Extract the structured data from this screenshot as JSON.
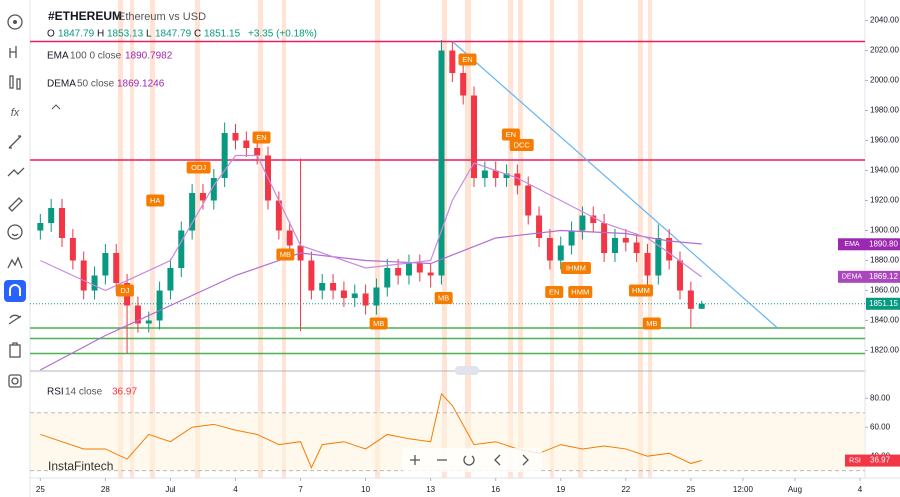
{
  "header": {
    "symbol": "#ETHEREUM",
    "description": "Ethereum vs USD",
    "ohlc": [
      {
        "key": "O",
        "value": "1847.79"
      },
      {
        "key": "H",
        "value": "1853.13"
      },
      {
        "key": "L",
        "value": "1847.79"
      },
      {
        "key": "C",
        "value": "1851.15"
      }
    ],
    "change": "+3.35 (+0.18%)"
  },
  "indicators": [
    {
      "name": "EMA",
      "params": "100 0 close",
      "value": "1890.7982"
    },
    {
      "name": "DEMA",
      "params": "50 close",
      "value": "1869.1246"
    }
  ],
  "rsi_header": {
    "name": "RSI",
    "params": "14 close",
    "value": "36.97"
  },
  "watermark": "InstaFintech",
  "chart_data": {
    "type": "candlestick",
    "x": [
      0,
      0.5,
      1,
      1.5,
      2,
      2.5,
      3,
      3.5,
      4,
      4.5,
      5,
      5.5,
      6,
      6.5,
      7,
      7.5,
      8,
      8.5,
      9,
      9.5,
      10,
      10.5,
      11,
      11.5,
      12,
      12.5,
      13,
      13.5,
      14,
      14.5,
      15,
      15.5,
      16,
      16.5,
      17,
      17.5,
      18,
      18.5,
      19,
      19.5,
      20,
      20.5,
      21,
      21.5,
      22,
      22.5,
      23,
      23.5,
      24,
      24.5,
      25,
      25.5,
      26,
      26.5,
      27,
      27.5,
      28,
      28.5,
      29,
      29.5,
      30,
      30.5
    ],
    "open": [
      1900,
      1905,
      1915,
      1895,
      1880,
      1860,
      1870,
      1885,
      1865,
      1850,
      1838,
      1840,
      1860,
      1875,
      1900,
      1925,
      1920,
      1935,
      1965,
      1960,
      1955,
      1950,
      1920,
      1900,
      1890,
      1880,
      1860,
      1865,
      1860,
      1855,
      1858,
      1850,
      1862,
      1875,
      1870,
      1878,
      1872,
      1870,
      2020,
      2005,
      1990,
      1935,
      1940,
      1935,
      1938,
      1930,
      1910,
      1895,
      1880,
      1890,
      1900,
      1910,
      1905,
      1885,
      1895,
      1892,
      1885,
      1870,
      1895,
      1880,
      1860,
      1847.79
    ],
    "high": [
      1911,
      1921,
      1921,
      1901,
      1886,
      1876,
      1891,
      1891,
      1871,
      1856,
      1846,
      1866,
      1881,
      1906,
      1931,
      1931,
      1941,
      1972,
      1971,
      1966,
      1961,
      1956,
      1926,
      1906,
      1948,
      1886,
      1871,
      1871,
      1866,
      1864,
      1864,
      1868,
      1881,
      1881,
      1884,
      1884,
      1878,
      2027,
      2026,
      2011,
      1996,
      1946,
      1946,
      1944,
      1944,
      1936,
      1916,
      1901,
      1896,
      1906,
      1916,
      1916,
      1911,
      1901,
      1901,
      1898,
      1891,
      1904,
      1901,
      1886,
      1866,
      1853.13
    ],
    "low": [
      1894,
      1899,
      1889,
      1874,
      1854,
      1854,
      1864,
      1859,
      1818,
      1832,
      1832,
      1834,
      1854,
      1869,
      1894,
      1914,
      1914,
      1929,
      1954,
      1949,
      1944,
      1914,
      1894,
      1884,
      1833,
      1854,
      1854,
      1854,
      1849,
      1849,
      1844,
      1844,
      1856,
      1864,
      1864,
      1866,
      1862,
      1864,
      1999,
      1984,
      1929,
      1929,
      1929,
      1929,
      1924,
      1904,
      1889,
      1874,
      1874,
      1884,
      1894,
      1899,
      1879,
      1879,
      1886,
      1879,
      1864,
      1864,
      1874,
      1854,
      1835,
      1847.79
    ],
    "close": [
      1905,
      1915,
      1895,
      1880,
      1860,
      1870,
      1885,
      1865,
      1850,
      1838,
      1840,
      1860,
      1875,
      1900,
      1925,
      1920,
      1935,
      1965,
      1960,
      1955,
      1950,
      1920,
      1900,
      1890,
      1880,
      1860,
      1865,
      1860,
      1855,
      1858,
      1850,
      1862,
      1875,
      1870,
      1878,
      1872,
      1870,
      2020,
      2005,
      1990,
      1935,
      1940,
      1935,
      1938,
      1930,
      1910,
      1895,
      1880,
      1890,
      1900,
      1910,
      1905,
      1885,
      1895,
      1892,
      1885,
      1870,
      1895,
      1880,
      1860,
      1847.79,
      1851.15
    ],
    "up_color": "#089981",
    "down_color": "#f23645",
    "lines": [
      {
        "name": "EMA",
        "color": "#b36bd1",
        "x": [
          0,
          3,
          6,
          9,
          12,
          15,
          18,
          21,
          24,
          27,
          29,
          30.5
        ],
        "values": [
          1807,
          1830,
          1850,
          1870,
          1885,
          1880,
          1878,
          1895,
          1900,
          1898,
          1893,
          1891
        ]
      },
      {
        "name": "DEMA",
        "color": "#c58be0",
        "x": [
          0,
          3,
          6,
          8,
          9,
          10,
          12,
          15,
          18,
          19,
          20,
          22,
          24,
          26,
          28,
          29,
          30.5
        ],
        "values": [
          1880,
          1860,
          1880,
          1930,
          1950,
          1950,
          1890,
          1875,
          1880,
          1920,
          1945,
          1935,
          1920,
          1905,
          1895,
          1885,
          1869
        ]
      }
    ],
    "hlines": [
      {
        "value": 2026,
        "color": "#e91e63"
      },
      {
        "value": 1947,
        "color": "#e91e63"
      },
      {
        "value": 1835,
        "color": "#4caf50"
      },
      {
        "value": 1828,
        "color": "#4caf50"
      },
      {
        "value": 1818,
        "color": "#4caf50"
      }
    ],
    "trendline": {
      "color": "#64b5f6",
      "x": [
        19,
        34
      ],
      "y": [
        2026,
        1835
      ]
    },
    "annotations": [
      {
        "text": "DJ",
        "x": 3.9,
        "y": 1860
      },
      {
        "text": "HA",
        "x": 5.3,
        "y": 1920
      },
      {
        "text": "ODJ",
        "x": 7.3,
        "y": 1942
      },
      {
        "text": "EN",
        "x": 10.2,
        "y": 1962
      },
      {
        "text": "MB",
        "x": 11.3,
        "y": 1884
      },
      {
        "text": "MB",
        "x": 15.6,
        "y": 1838
      },
      {
        "text": "MB",
        "x": 18.6,
        "y": 1855
      },
      {
        "text": "EN",
        "x": 19.7,
        "y": 2014
      },
      {
        "text": "EN",
        "x": 21.7,
        "y": 1964
      },
      {
        "text": "DCC",
        "x": 22.2,
        "y": 1957
      },
      {
        "text": "EN",
        "x": 23.7,
        "y": 1859
      },
      {
        "text": "IHMM",
        "x": 24.7,
        "y": 1875
      },
      {
        "text": "HMM",
        "x": 24.9,
        "y": 1859
      },
      {
        "text": "HMM",
        "x": 27.7,
        "y": 1860
      },
      {
        "text": "MB",
        "x": 28.2,
        "y": 1838
      }
    ],
    "price_tags": [
      {
        "name": "EMA",
        "value": 1890.8,
        "label": "1890.80",
        "color": "#9c27b0"
      },
      {
        "name": "DEMA",
        "value": 1869.12,
        "label": "1869.12",
        "color": "#ab47bc"
      },
      {
        "value": 1851.15,
        "label": "1851.15",
        "color": "#089981"
      }
    ],
    "xlim": [
      -0.2,
      38.4
    ],
    "ylim": [
      1807,
      2047
    ],
    "yticks": [
      {
        "value": 1820,
        "label": "1820.00"
      },
      {
        "value": 1840,
        "label": "1840.00"
      },
      {
        "value": 1860,
        "label": "1860.00"
      },
      {
        "value": 1880,
        "label": "1880.00"
      },
      {
        "value": 1900,
        "label": "1900.00"
      },
      {
        "value": 1920,
        "label": "1920.00"
      },
      {
        "value": 1940,
        "label": "1940.00"
      },
      {
        "value": 1960,
        "label": "1960.00"
      },
      {
        "value": 1980,
        "label": "1980.00"
      },
      {
        "value": 2000,
        "label": "2000.00"
      },
      {
        "value": 2020,
        "label": "2020.00"
      },
      {
        "value": 2040,
        "label": "2040.00"
      }
    ],
    "xticks": [
      {
        "value": 0,
        "label": "25"
      },
      {
        "value": 3,
        "label": "28"
      },
      {
        "value": 6,
        "label": "Jul"
      },
      {
        "value": 9,
        "label": "4"
      },
      {
        "value": 12,
        "label": "7"
      },
      {
        "value": 15,
        "label": "10"
      },
      {
        "value": 18,
        "label": "13"
      },
      {
        "value": 21,
        "label": "16"
      },
      {
        "value": 24,
        "label": "19"
      },
      {
        "value": 27,
        "label": "22"
      },
      {
        "value": 30,
        "label": "25"
      },
      {
        "value": 32.4,
        "label": "12:00"
      },
      {
        "value": 34.8,
        "label": "Aug"
      },
      {
        "value": 37.8,
        "label": "4"
      }
    ],
    "rsi": {
      "color": "#f57c00",
      "x": [
        0,
        1,
        2,
        3,
        4,
        5,
        6,
        7,
        8,
        9,
        10,
        11,
        12,
        12.5,
        13,
        14,
        15,
        16,
        17,
        18,
        18.5,
        19,
        20,
        21,
        22,
        23,
        24,
        25,
        26,
        27,
        28,
        29,
        30,
        30.5
      ],
      "values": [
        55,
        50,
        45,
        45,
        38,
        55,
        50,
        60,
        62,
        58,
        55,
        48,
        50,
        32,
        48,
        50,
        45,
        55,
        52,
        50,
        83,
        75,
        48,
        50,
        45,
        42,
        48,
        45,
        47,
        45,
        40,
        42,
        35,
        37
      ],
      "ylim": [
        27,
        94
      ],
      "yticks": [
        {
          "value": 40,
          "label": "40.00"
        },
        {
          "value": 60,
          "label": "60.00"
        },
        {
          "value": 80,
          "label": "80.00"
        }
      ],
      "levels": [
        70,
        30
      ],
      "tag": {
        "name": "RSI",
        "value": 36.97,
        "label": "36.97",
        "color": "#f23645"
      }
    }
  }
}
